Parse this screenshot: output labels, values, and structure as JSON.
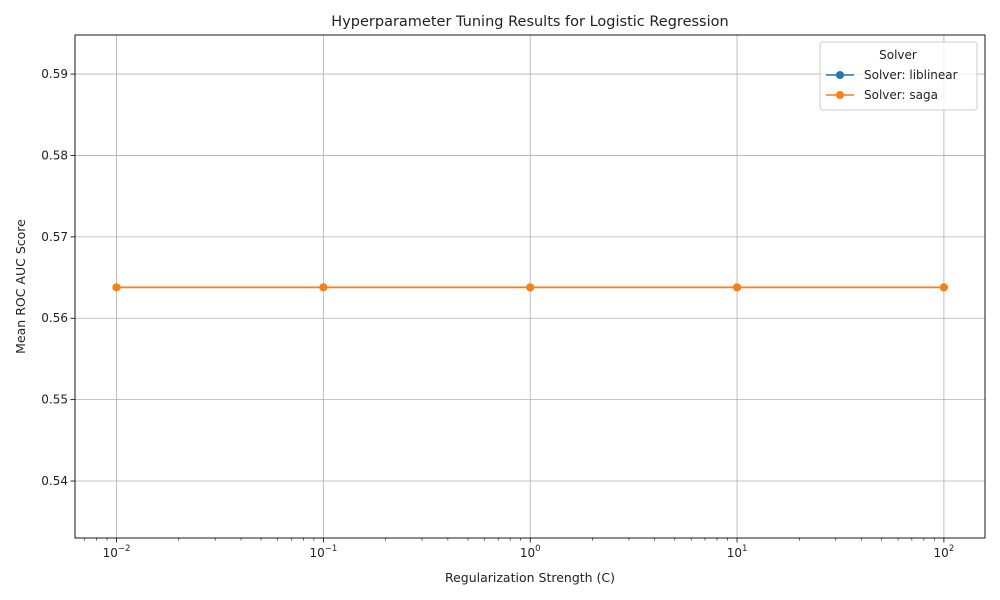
{
  "chart_data": {
    "type": "line",
    "title": "Hyperparameter Tuning Results for Logistic Regression",
    "xlabel": "Regularization Strength (C)",
    "ylabel": "Mean ROC AUC Score",
    "x_scale": "log",
    "x": [
      0.01,
      0.1,
      1,
      10,
      100
    ],
    "x_tick_labels": [
      {
        "base": "10",
        "exp": "−2"
      },
      {
        "base": "10",
        "exp": "−1"
      },
      {
        "base": "10",
        "exp": "0"
      },
      {
        "base": "10",
        "exp": "1"
      },
      {
        "base": "10",
        "exp": "2"
      }
    ],
    "xlim": [
      0.0063,
      158
    ],
    "ylim": [
      0.533,
      0.5948
    ],
    "y_ticks": [
      0.54,
      0.55,
      0.56,
      0.57,
      0.58,
      0.59
    ],
    "y_tick_labels": [
      "0.54",
      "0.55",
      "0.56",
      "0.57",
      "0.58",
      "0.59"
    ],
    "grid": true,
    "legend": {
      "title": "Solver",
      "placement": "top-right"
    },
    "series": [
      {
        "name": "Solver: liblinear",
        "color": "#1f77b4",
        "marker": "circle",
        "values": [
          0.5638,
          0.5638,
          0.5638,
          0.5638,
          0.5638
        ]
      },
      {
        "name": "Solver: saga",
        "color": "#ff7f0e",
        "marker": "circle",
        "values": [
          0.5638,
          0.5638,
          0.5638,
          0.5638,
          0.5638
        ]
      }
    ]
  }
}
